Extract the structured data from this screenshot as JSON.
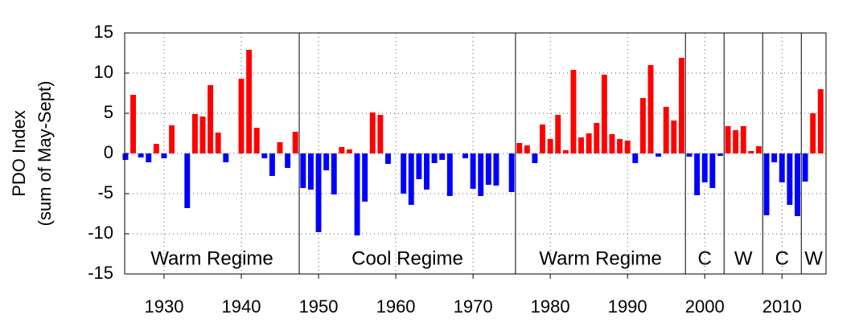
{
  "chart_data": {
    "type": "bar",
    "ylabel": [
      "PDO Index",
      "(sum of May-Sept)"
    ],
    "x": [
      1925,
      1926,
      1927,
      1928,
      1929,
      1930,
      1931,
      1932,
      1933,
      1934,
      1935,
      1936,
      1937,
      1938,
      1939,
      1940,
      1941,
      1942,
      1943,
      1944,
      1945,
      1946,
      1947,
      1948,
      1949,
      1950,
      1951,
      1952,
      1953,
      1954,
      1955,
      1956,
      1957,
      1958,
      1959,
      1960,
      1961,
      1962,
      1963,
      1964,
      1965,
      1966,
      1967,
      1968,
      1969,
      1970,
      1971,
      1972,
      1973,
      1974,
      1975,
      1976,
      1977,
      1978,
      1979,
      1980,
      1981,
      1982,
      1983,
      1984,
      1985,
      1986,
      1987,
      1988,
      1989,
      1990,
      1991,
      1992,
      1993,
      1994,
      1995,
      1996,
      1997,
      1998,
      1999,
      2000,
      2001,
      2002,
      2003,
      2004,
      2005,
      2006,
      2007,
      2008,
      2009,
      2010,
      2011,
      2012,
      2013,
      2014,
      2015
    ],
    "values": [
      -0.8,
      7.3,
      -0.5,
      -1.1,
      1.2,
      -0.6,
      3.5,
      0,
      -6.8,
      4.9,
      4.6,
      8.5,
      2.6,
      -1.1,
      0,
      9.3,
      12.9,
      3.2,
      -0.6,
      -2.8,
      1.4,
      -1.8,
      2.7,
      -4.3,
      -4.5,
      -9.8,
      -2.1,
      -5.1,
      0.8,
      0.5,
      -10.2,
      -6.0,
      5.1,
      4.8,
      -1.3,
      0,
      -5.0,
      -6.4,
      -3.2,
      -4.5,
      -1.2,
      -0.8,
      -5.3,
      0,
      -0.6,
      -4.4,
      -5.3,
      -3.9,
      -4.0,
      0,
      -4.8,
      1.3,
      1.0,
      -1.2,
      3.6,
      1.8,
      4.8,
      0.4,
      10.4,
      2.0,
      2.5,
      3.8,
      9.8,
      2.4,
      1.8,
      1.6,
      -1.2,
      6.9,
      11.0,
      -0.4,
      5.8,
      4.1,
      11.9,
      -0.4,
      -5.2,
      -3.6,
      -4.3,
      -0.3,
      3.4,
      2.9,
      3.4,
      0.3,
      0.9,
      -7.7,
      -1.1,
      -3.6,
      -6.4,
      -7.8,
      -3.5,
      5.0,
      8.0
    ],
    "positive_color": "#ff0000",
    "negative_color": "#0000ff",
    "xlim": [
      1924.9,
      2015.7
    ],
    "xticks": [
      1930,
      1940,
      1950,
      1960,
      1970,
      1980,
      1990,
      2000,
      2010
    ],
    "ylim": [
      -15,
      15
    ],
    "yticks": [
      15,
      10,
      5,
      0,
      -5,
      -10,
      -15
    ],
    "grid": true,
    "dividers": [
      1947.5,
      1975.5,
      1997.5,
      2002.5,
      2007.5,
      2012.5
    ],
    "regime_labels": [
      "Warm Regime",
      "Cool Regime",
      "Warm Regime",
      "C",
      "W",
      "C",
      "W"
    ]
  }
}
